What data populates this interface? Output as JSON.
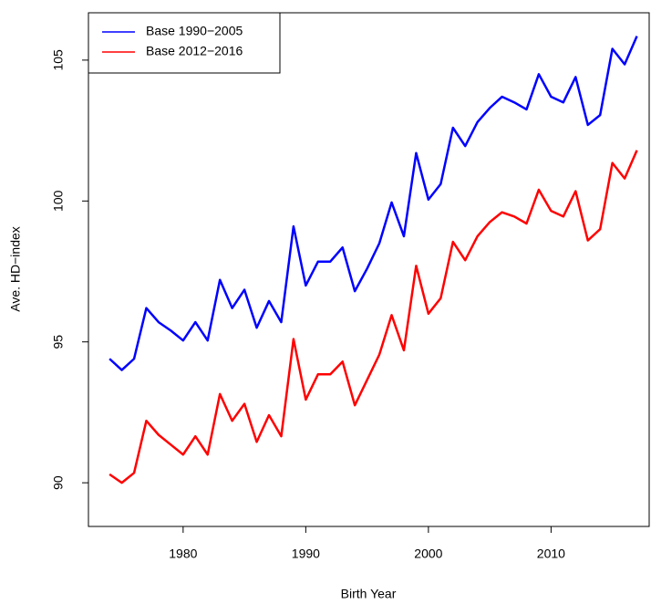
{
  "chart_data": {
    "type": "line",
    "xlabel": "Birth Year",
    "ylabel": "Ave. HD−index",
    "x": [
      1974,
      1975,
      1976,
      1977,
      1978,
      1979,
      1980,
      1981,
      1982,
      1983,
      1984,
      1985,
      1986,
      1987,
      1988,
      1989,
      1990,
      1991,
      1992,
      1993,
      1994,
      1995,
      1996,
      1997,
      1998,
      1999,
      2000,
      2001,
      2002,
      2003,
      2004,
      2005,
      2006,
      2007,
      2008,
      2009,
      2010,
      2011,
      2012,
      2013,
      2014,
      2015,
      2016,
      2017
    ],
    "series": [
      {
        "name": "Base 1990−2005",
        "color": "#0000ff",
        "values": [
          94.4,
          94.0,
          94.4,
          96.2,
          95.7,
          95.4,
          95.05,
          95.7,
          95.05,
          97.2,
          96.2,
          96.85,
          95.5,
          96.45,
          95.7,
          99.1,
          97.0,
          97.85,
          97.85,
          98.35,
          96.8,
          97.6,
          98.5,
          99.95,
          98.75,
          101.7,
          100.05,
          100.6,
          102.6,
          101.95,
          102.8,
          103.3,
          103.7,
          103.5,
          103.25,
          104.5,
          103.7,
          103.5,
          104.4,
          102.7,
          103.05,
          105.4,
          104.85,
          105.85
        ]
      },
      {
        "name": "Base 2012−2016",
        "color": "#ff0000",
        "values": [
          90.3,
          90.0,
          90.35,
          92.2,
          91.7,
          91.35,
          91.0,
          91.65,
          91.0,
          93.15,
          92.2,
          92.8,
          91.45,
          92.4,
          91.65,
          95.1,
          92.95,
          93.85,
          93.85,
          94.3,
          92.75,
          93.65,
          94.55,
          95.95,
          94.7,
          97.7,
          96.0,
          96.55,
          98.55,
          97.9,
          98.75,
          99.25,
          99.6,
          99.45,
          99.2,
          100.4,
          99.65,
          99.45,
          100.35,
          98.6,
          99.0,
          101.35,
          100.8,
          101.8
        ]
      }
    ],
    "xlim": [
      1972.28,
      2018.0
    ],
    "xticks": [
      1980,
      1990,
      2000,
      2010
    ],
    "ylim": [
      88.45,
      106.68
    ],
    "yticks": [
      90,
      95,
      100,
      105
    ],
    "legend": "top-left"
  }
}
